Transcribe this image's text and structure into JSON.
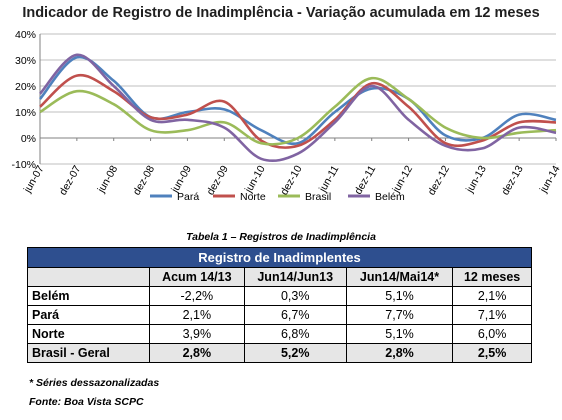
{
  "chart_data": {
    "type": "line",
    "title": "Indicador de Registro de Inadimplência - Variação acumulada em 12 meses",
    "xlabel": "",
    "ylabel": "",
    "ylim": [
      -10,
      40
    ],
    "yticks": [
      "-10%",
      "0%",
      "10%",
      "20%",
      "30%",
      "40%"
    ],
    "ytick_values": [
      -10,
      0,
      10,
      20,
      30,
      40
    ],
    "x": [
      "jun-07",
      "dez-07",
      "jun-08",
      "dez-08",
      "jun-09",
      "dez-09",
      "jun-10",
      "dez-10",
      "jun-11",
      "dez-11",
      "jun-12",
      "dez-12",
      "jun-13",
      "dez-13",
      "jun-14"
    ],
    "grid": true,
    "legend_position": "bottom",
    "series": [
      {
        "name": "Pará",
        "color": "#4f81bd",
        "values": [
          15,
          31,
          22,
          8,
          10,
          11,
          3,
          -2,
          10,
          19,
          15,
          1,
          0,
          9,
          7
        ]
      },
      {
        "name": "Norte",
        "color": "#c0504d",
        "values": [
          12,
          24,
          18,
          8,
          9,
          14,
          -1,
          -3,
          7,
          21,
          12,
          -2,
          -1,
          6,
          6
        ]
      },
      {
        "name": "Brasil",
        "color": "#9bbb59",
        "values": [
          10,
          18,
          13,
          3,
          3,
          6,
          -2,
          0,
          12,
          23,
          15,
          4,
          0,
          2,
          3
        ]
      },
      {
        "name": "Belém",
        "color": "#8064a2",
        "values": [
          17,
          32,
          20,
          7,
          7,
          4,
          -8,
          -6,
          6,
          20,
          7,
          -3,
          -4,
          4,
          2
        ]
      }
    ]
  },
  "table": {
    "caption": "Tabela 1 – Registros de Inadimplência",
    "header": "Registro de Inadimplentes",
    "columns": [
      "Acum 14/13",
      "Jun14/Jun13",
      "Jun14/Mai14*",
      "12 meses"
    ],
    "rows": [
      {
        "label": "Belém",
        "values": [
          "-2,2%",
          "0,3%",
          "5,1%",
          "2,1%"
        ]
      },
      {
        "label": "Pará",
        "values": [
          "2,1%",
          "6,7%",
          "7,7%",
          "7,1%"
        ]
      },
      {
        "label": "Norte",
        "values": [
          "3,9%",
          "6,8%",
          "5,1%",
          "6,0%"
        ]
      },
      {
        "label": "Brasil - Geral",
        "values": [
          "2,8%",
          "5,2%",
          "2,8%",
          "2,5%"
        ]
      }
    ]
  },
  "notes": {
    "note1": "* Séries dessazonalizadas",
    "note2": "Fonte: Boa Vista SCPC"
  }
}
